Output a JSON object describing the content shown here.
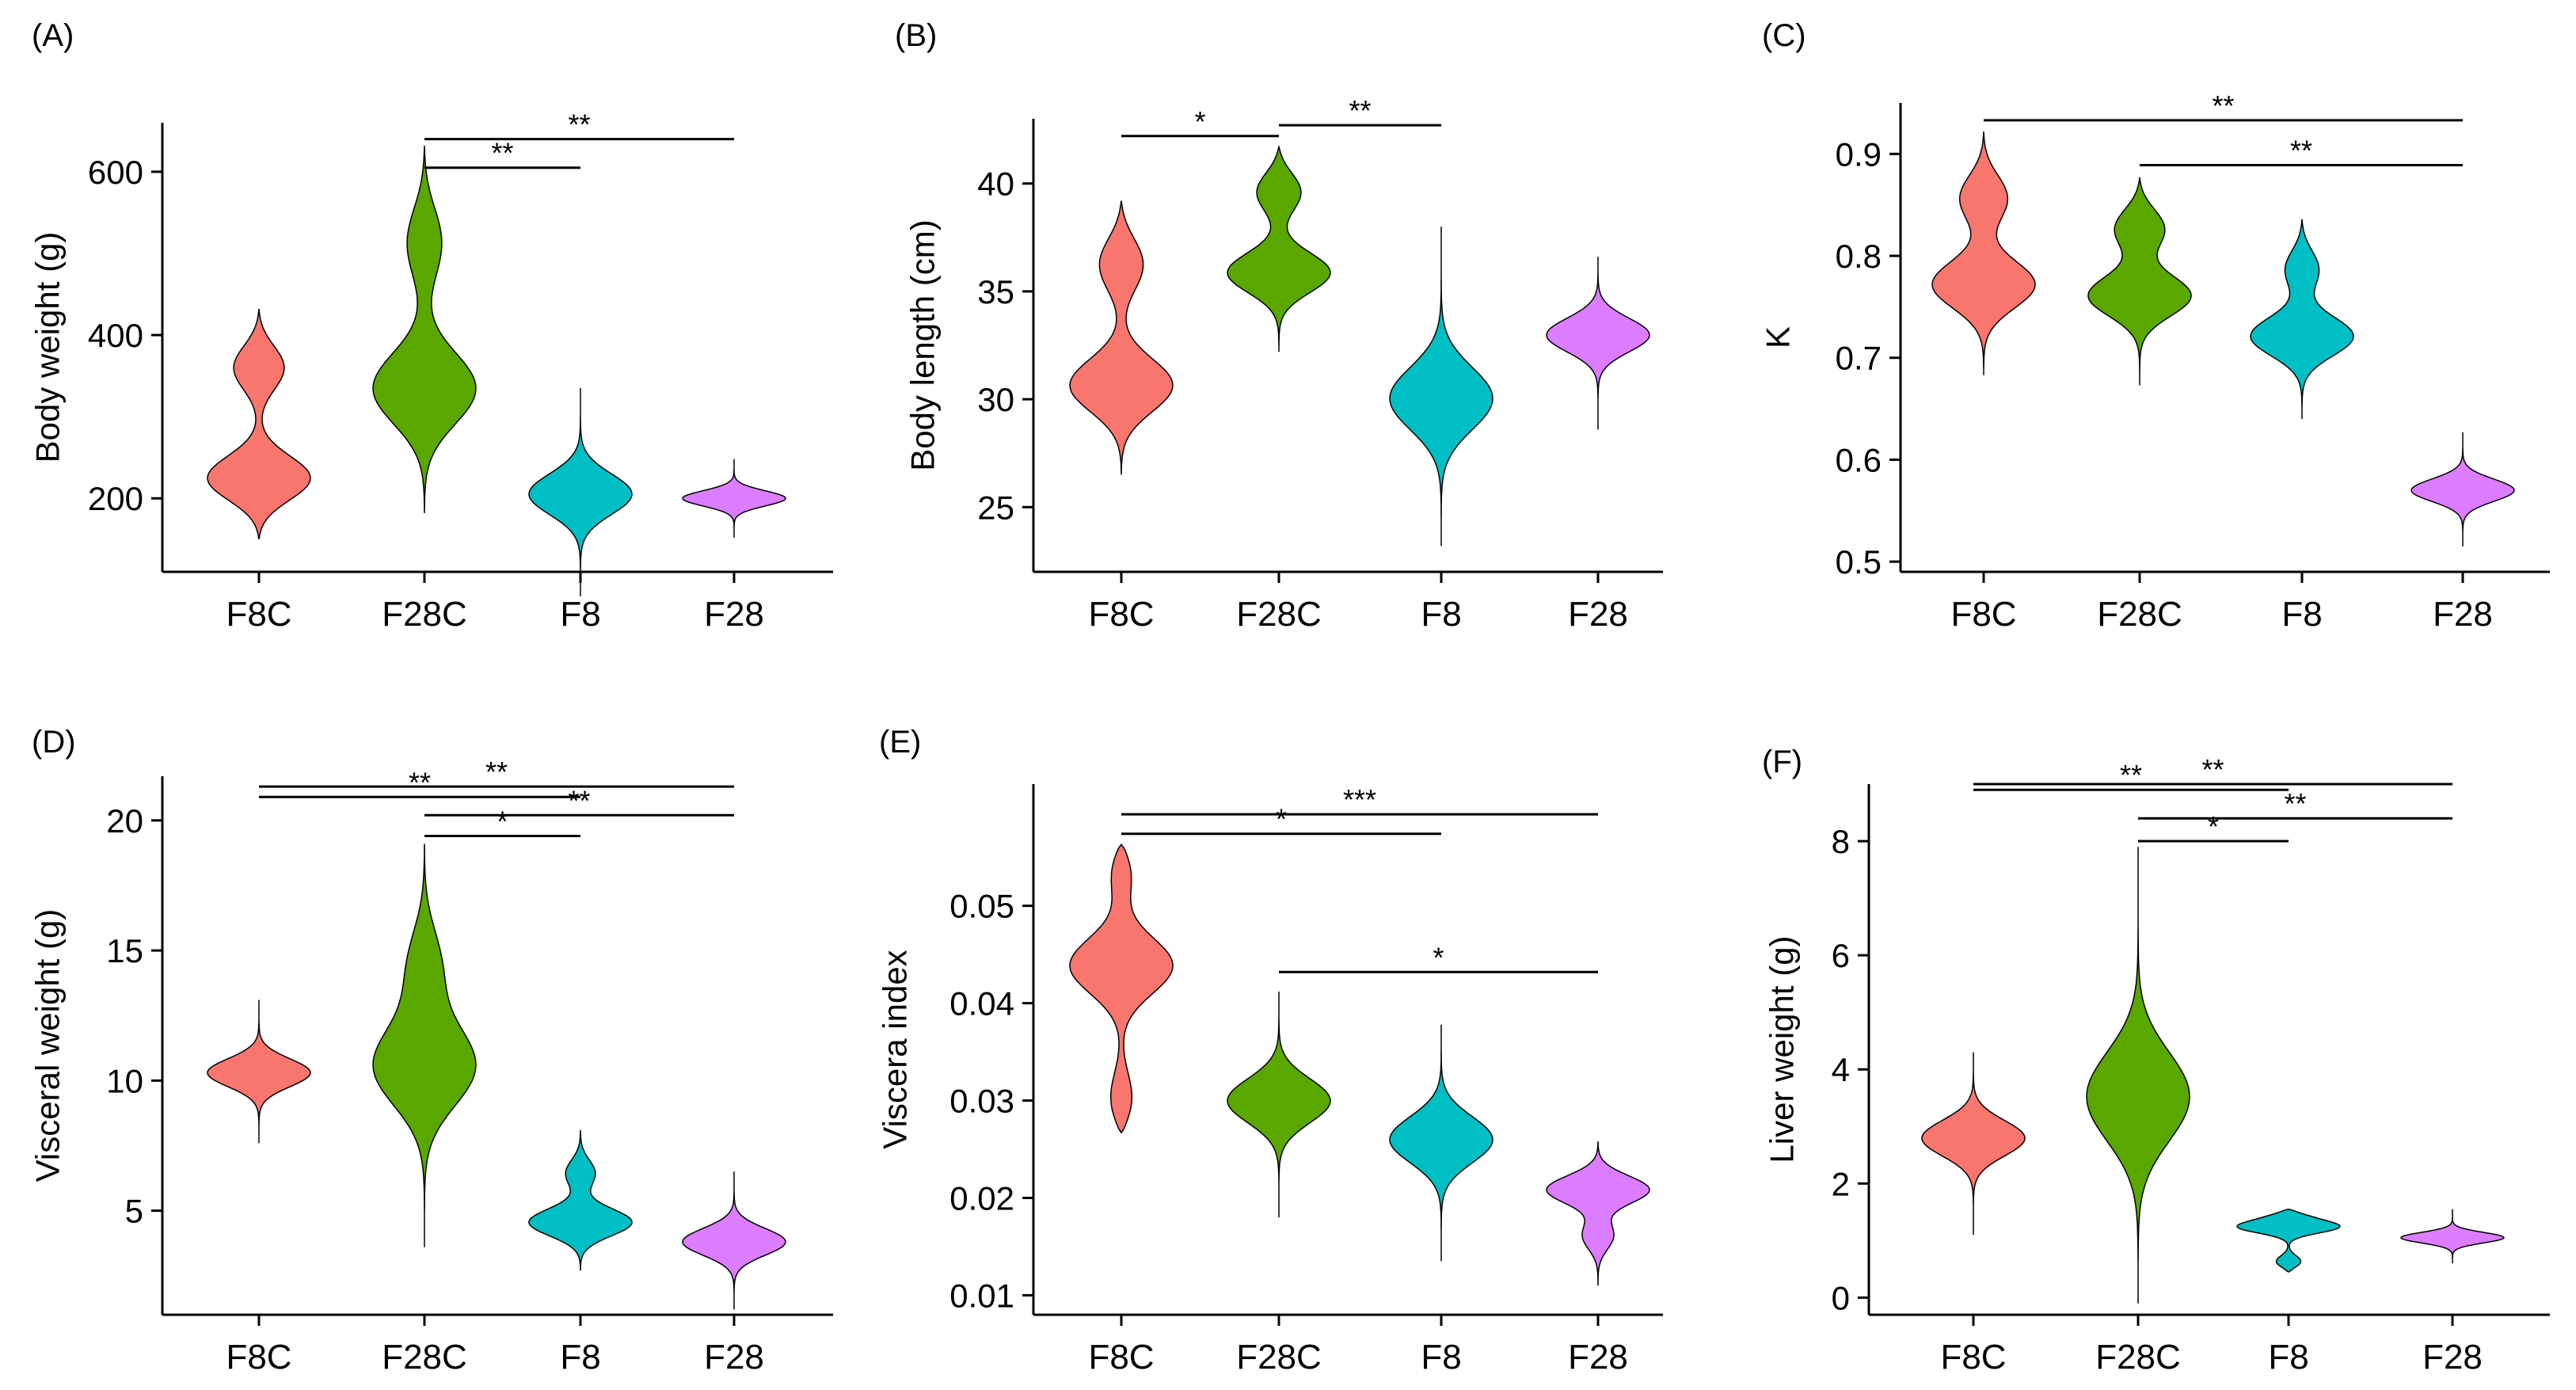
{
  "chart_data": [
    {
      "panel": "(A)",
      "type": "violin",
      "ylabel": "Body weight (g)",
      "ylim": [
        110,
        660
      ],
      "yticks": [
        200,
        400,
        600
      ],
      "ytick_labels": [
        "200",
        "400",
        "600"
      ],
      "categories": [
        "F8C",
        "F28C",
        "F8",
        "F28"
      ],
      "colors": [
        "#F8766D",
        "#5AA700",
        "#00BFC4",
        "#DC7CFF"
      ],
      "violins": [
        {
          "category": "F8C",
          "ymin": 150,
          "ymax": 432,
          "modes": [
            [
              220,
              0.9
            ],
            [
              365,
              0.45
            ]
          ]
        },
        {
          "category": "F28C",
          "ymin": 182,
          "ymax": 632,
          "modes": [
            [
              330,
              0.8
            ],
            [
              520,
              0.3
            ]
          ]
        },
        {
          "category": "F8",
          "ymin": 80,
          "ymax": 335,
          "modes": [
            [
              205,
              0.9
            ]
          ]
        },
        {
          "category": "F28",
          "ymin": 152,
          "ymax": 248,
          "modes": [
            [
              200,
              1.0
            ]
          ]
        }
      ],
      "significance": [
        {
          "from": "F28C",
          "to": "F8",
          "label": "**",
          "y": 605
        },
        {
          "from": "F28C",
          "to": "F28",
          "label": "**",
          "y": 640
        }
      ]
    },
    {
      "panel": "(B)",
      "type": "violin",
      "ylabel": "Body length (cm)",
      "ylim": [
        22,
        43
      ],
      "yticks": [
        25,
        30,
        35,
        40
      ],
      "ytick_labels": [
        "25",
        "30",
        "35",
        "40"
      ],
      "categories": [
        "F8C",
        "F28C",
        "F8",
        "F28"
      ],
      "colors": [
        "#F8766D",
        "#5AA700",
        "#00BFC4",
        "#DC7CFF"
      ],
      "violins": [
        {
          "category": "F8C",
          "ymin": 26.5,
          "ymax": 39.2,
          "modes": [
            [
              30.5,
              1.0
            ],
            [
              36.5,
              0.5
            ]
          ]
        },
        {
          "category": "F28C",
          "ymin": 32.2,
          "ymax": 41.7,
          "modes": [
            [
              35.8,
              1.0
            ],
            [
              39.8,
              0.55
            ]
          ]
        },
        {
          "category": "F8",
          "ymin": 23.2,
          "ymax": 38.0,
          "modes": [
            [
              30.0,
              0.75
            ]
          ]
        },
        {
          "category": "F28",
          "ymin": 28.6,
          "ymax": 36.6,
          "modes": [
            [
              33.0,
              1.0
            ]
          ]
        }
      ],
      "significance": [
        {
          "from": "F8C",
          "to": "F28C",
          "label": "*",
          "y": 42.2
        },
        {
          "from": "F28C",
          "to": "F8",
          "label": "**",
          "y": 42.7
        }
      ]
    },
    {
      "panel": "(C)",
      "type": "violin",
      "ylabel": "K",
      "ylim": [
        0.49,
        0.95
      ],
      "yticks": [
        0.5,
        0.6,
        0.7,
        0.8,
        0.9
      ],
      "ytick_labels": [
        "0.5",
        "0.6",
        "0.7",
        "0.8",
        "0.9"
      ],
      "categories": [
        "F8C",
        "F28C",
        "F8",
        "F28"
      ],
      "colors": [
        "#F8766D",
        "#5AA700",
        "#00BFC4",
        "#DC7CFF"
      ],
      "violins": [
        {
          "category": "F8C",
          "ymin": 0.683,
          "ymax": 0.922,
          "modes": [
            [
              0.77,
              0.95
            ],
            [
              0.86,
              0.5
            ]
          ]
        },
        {
          "category": "F28C",
          "ymin": 0.673,
          "ymax": 0.877,
          "modes": [
            [
              0.76,
              1.0
            ],
            [
              0.83,
              0.6
            ]
          ]
        },
        {
          "category": "F8",
          "ymin": 0.64,
          "ymax": 0.836,
          "modes": [
            [
              0.72,
              1.0
            ],
            [
              0.79,
              0.4
            ]
          ]
        },
        {
          "category": "F28",
          "ymin": 0.515,
          "ymax": 0.627,
          "modes": [
            [
              0.57,
              1.0
            ]
          ]
        }
      ],
      "significance": [
        {
          "from": "F8C",
          "to": "F28",
          "label": "**",
          "y": 0.933
        },
        {
          "from": "F28C",
          "to": "F28",
          "label": "**",
          "y": 0.889
        }
      ]
    },
    {
      "panel": "(D)",
      "type": "violin",
      "ylabel": "Visceral weight (g)",
      "ylim": [
        1.0,
        21.7
      ],
      "yticks": [
        5,
        10,
        15,
        20
      ],
      "ytick_labels": [
        "5",
        "10",
        "15",
        "20"
      ],
      "categories": [
        "F8C",
        "F28C",
        "F8",
        "F28"
      ],
      "colors": [
        "#F8766D",
        "#5AA700",
        "#00BFC4",
        "#DC7CFF"
      ],
      "violins": [
        {
          "category": "F8C",
          "ymin": 7.6,
          "ymax": 13.1,
          "modes": [
            [
              10.3,
              1.0
            ]
          ]
        },
        {
          "category": "F28C",
          "ymin": 3.6,
          "ymax": 19.1,
          "modes": [
            [
              10.5,
              0.8
            ],
            [
              14.5,
              0.3
            ]
          ]
        },
        {
          "category": "F8",
          "ymin": 2.7,
          "ymax": 8.1,
          "modes": [
            [
              4.5,
              1.0
            ],
            [
              6.5,
              0.3
            ]
          ]
        },
        {
          "category": "F28",
          "ymin": 1.2,
          "ymax": 6.5,
          "modes": [
            [
              3.8,
              1.0
            ]
          ]
        }
      ],
      "significance": [
        {
          "from": "F8C",
          "to": "F28",
          "label": "**",
          "y": 21.3
        },
        {
          "from": "F8C",
          "to": "F8",
          "label": "**",
          "y": 20.9
        },
        {
          "from": "F28C",
          "to": "F28",
          "label": "**",
          "y": 20.2
        },
        {
          "from": "F28C",
          "to": "F8",
          "label": "*",
          "y": 19.4
        }
      ]
    },
    {
      "panel": "(E)",
      "type": "violin",
      "ylabel": "Viscera index",
      "ylim": [
        0.008,
        0.0625
      ],
      "yticks": [
        0.01,
        0.02,
        0.03,
        0.04,
        0.05
      ],
      "ytick_labels": [
        "0.01",
        "0.02",
        "0.03",
        "0.04",
        "0.05"
      ],
      "categories": [
        "F8C",
        "F28C",
        "F8",
        "F28"
      ],
      "colors": [
        "#F8766D",
        "#5AA700",
        "#00BFC4",
        "#DC7CFF"
      ],
      "violins": [
        {
          "category": "F8C",
          "ymin": 0.0267,
          "ymax": 0.0563,
          "modes": [
            [
              0.044,
              1.0
            ],
            [
              0.0545,
              0.4
            ],
            [
              0.029,
              0.4
            ]
          ]
        },
        {
          "category": "F28C",
          "ymin": 0.018,
          "ymax": 0.0412,
          "modes": [
            [
              0.03,
              0.75
            ]
          ]
        },
        {
          "category": "F8",
          "ymin": 0.0135,
          "ymax": 0.0378,
          "modes": [
            [
              0.026,
              0.65
            ]
          ]
        },
        {
          "category": "F28",
          "ymin": 0.011,
          "ymax": 0.0258,
          "modes": [
            [
              0.021,
              1.0
            ],
            [
              0.016,
              0.3
            ]
          ]
        }
      ],
      "significance": [
        {
          "from": "F8C",
          "to": "F28",
          "label": "***",
          "y": 0.0594
        },
        {
          "from": "F8C",
          "to": "F8",
          "label": "*",
          "y": 0.0574
        },
        {
          "from": "F28C",
          "to": "F28",
          "label": "*",
          "y": 0.0432
        }
      ]
    },
    {
      "panel": "(F)",
      "type": "violin",
      "ylabel": "Liver weight (g)",
      "ylim": [
        -0.3,
        9.0
      ],
      "yticks": [
        0,
        2,
        4,
        6,
        8
      ],
      "ytick_labels": [
        "0",
        "2",
        "4",
        "6",
        "8"
      ],
      "categories": [
        "F8C",
        "F28C",
        "F8",
        "F28"
      ],
      "colors": [
        "#F8766D",
        "#5AA700",
        "#00BFC4",
        "#DC7CFF"
      ],
      "violins": [
        {
          "category": "F8C",
          "ymin": 1.1,
          "ymax": 4.3,
          "modes": [
            [
              2.8,
              0.55
            ]
          ]
        },
        {
          "category": "F28C",
          "ymin": -0.1,
          "ymax": 7.9,
          "modes": [
            [
              3.5,
              0.18
            ]
          ]
        },
        {
          "category": "F8",
          "ymin": 0.45,
          "ymax": 1.55,
          "modes": [
            [
              1.25,
              1.0
            ],
            [
              1.45,
              0.5
            ],
            [
              0.6,
              0.35
            ]
          ]
        },
        {
          "category": "F28",
          "ymin": 0.6,
          "ymax": 1.55,
          "modes": [
            [
              1.05,
              0.65
            ]
          ]
        }
      ],
      "significance": [
        {
          "from": "F8C",
          "to": "F28",
          "label": "**",
          "y": 9.0
        },
        {
          "from": "F8C",
          "to": "F8",
          "label": "**",
          "y": 8.9
        },
        {
          "from": "F28C",
          "to": "F28",
          "label": "**",
          "y": 8.4
        },
        {
          "from": "F28C",
          "to": "F8",
          "label": "*",
          "y": 8.0
        }
      ]
    }
  ]
}
